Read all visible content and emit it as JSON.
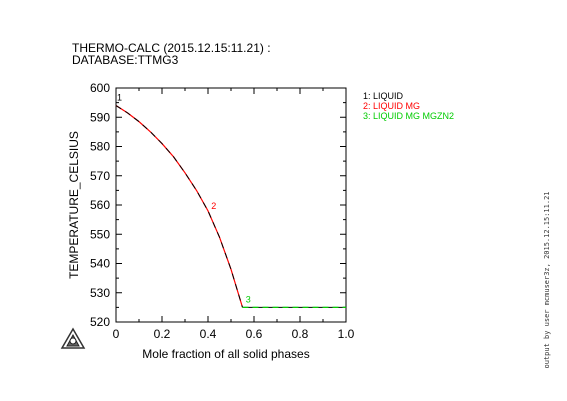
{
  "header": {
    "title_line1": "THERMO-CALC (2015.12.15:11.21) :",
    "title_line2": "DATABASE:TTMG3"
  },
  "side_text": "output by user mcmuser3z, 2015.12.15:11.21",
  "chart_data": {
    "type": "line",
    "xlabel": "Mole fraction of all solid phases",
    "ylabel": "TEMPERATURE_CELSIUS",
    "xlim": [
      0,
      1.0
    ],
    "ylim": [
      520,
      600
    ],
    "x_ticks": [
      0,
      0.2,
      0.4,
      0.6,
      0.8,
      1.0
    ],
    "x_tick_labels": [
      "0",
      "0.2",
      "0.4",
      "0.6",
      "0.8",
      "1.0"
    ],
    "y_ticks": [
      520,
      530,
      540,
      550,
      560,
      570,
      580,
      590,
      600
    ],
    "y_tick_labels": [
      "520",
      "530",
      "540",
      "550",
      "560",
      "570",
      "580",
      "590",
      "600"
    ],
    "grid": false,
    "legend_position": "top-right, outside plot",
    "series": [
      {
        "name": "1: LIQUID",
        "color": "#000000",
        "x": [
          0,
          0.0
        ],
        "y": [
          594,
          594
        ]
      },
      {
        "name": "2: LIQUID MG",
        "color": "#ff0000",
        "x": [
          0,
          0.05,
          0.1,
          0.15,
          0.2,
          0.25,
          0.3,
          0.35,
          0.4,
          0.45,
          0.5,
          0.55
        ],
        "y": [
          594,
          591.5,
          588.5,
          585,
          581,
          576.5,
          571,
          565,
          558,
          549,
          538,
          525
        ]
      },
      {
        "name": "3: LIQUID MG MGZN2",
        "color": "#00cc00",
        "x": [
          0.55,
          1.0
        ],
        "y": [
          525,
          525
        ]
      }
    ],
    "annotations": [
      {
        "text": "1",
        "x": 0.0,
        "y": 595,
        "color": "#000000"
      },
      {
        "text": "2",
        "x": 0.41,
        "y": 558,
        "color": "#ff0000"
      },
      {
        "text": "3",
        "x": 0.56,
        "y": 526,
        "color": "#00cc00"
      }
    ]
  }
}
